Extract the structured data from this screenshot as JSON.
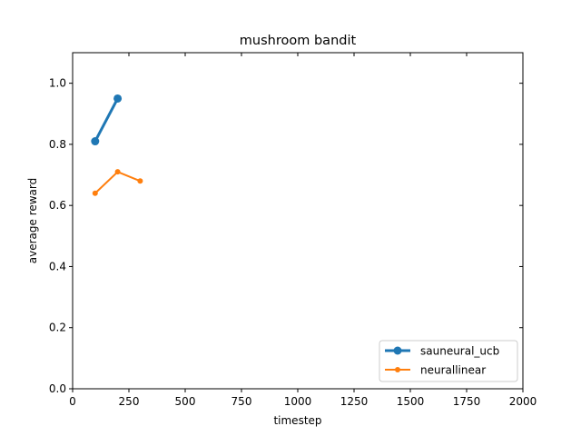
{
  "chart_data": {
    "type": "line",
    "title": "mushroom bandit",
    "xlabel": "timestep",
    "ylabel": "average reward",
    "xlim": [
      0,
      2000
    ],
    "ylim": [
      0,
      1.1
    ],
    "xticks": [
      0,
      250,
      500,
      750,
      1000,
      1250,
      1500,
      1750,
      2000
    ],
    "yticks": [
      0.0,
      0.2,
      0.4,
      0.6,
      0.8,
      1.0
    ],
    "xtick_labels": [
      "0",
      "250",
      "500",
      "750",
      "1000",
      "1250",
      "1500",
      "1750",
      "2000"
    ],
    "ytick_labels": [
      "0.0",
      "0.2",
      "0.4",
      "0.6",
      "0.8",
      "1.0"
    ],
    "grid": false,
    "legend_position": "lower-right",
    "series": [
      {
        "name": "sauneural_ucb",
        "color": "#1f77b4",
        "line_width": "thick",
        "marker": "circle-large",
        "x": [
          100,
          200
        ],
        "y": [
          0.81,
          0.95
        ]
      },
      {
        "name": "neurallinear",
        "color": "#ff7f0e",
        "line_width": "normal",
        "marker": "circle-small",
        "x": [
          100,
          200,
          300
        ],
        "y": [
          0.64,
          0.71,
          0.68
        ]
      }
    ]
  }
}
